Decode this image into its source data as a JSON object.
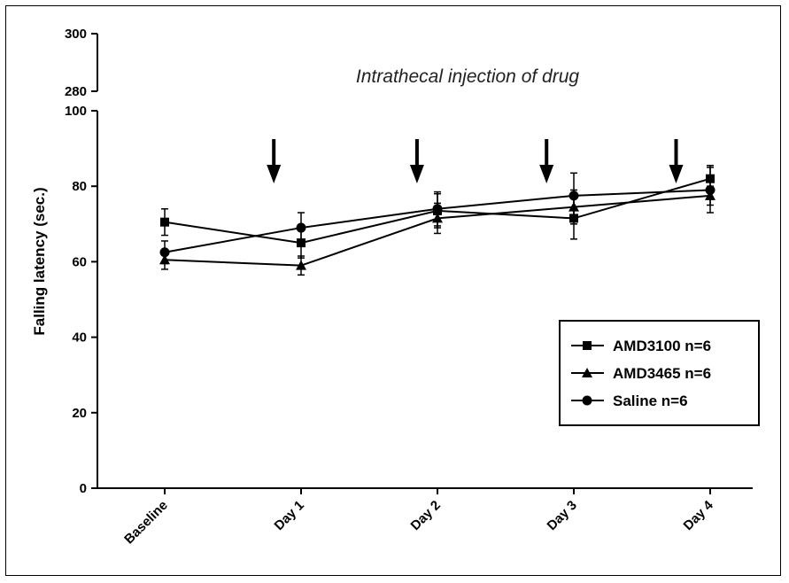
{
  "chart_data": {
    "type": "line",
    "title": "",
    "annotation": "Intrathecal injection of drug",
    "xlabel": "",
    "ylabel": "Falling latency (sec.)",
    "categories": [
      "Baseline",
      "Day 1",
      "Day 2",
      "Day 3",
      "Day 4"
    ],
    "y_ticks_lower": [
      "0",
      "20",
      "40",
      "60",
      "80",
      "100"
    ],
    "y_ticks_upper": [
      "280",
      "300"
    ],
    "ylim_lower": [
      0,
      100
    ],
    "ylim_upper": [
      280,
      300
    ],
    "y_axis_break": true,
    "grid": false,
    "legend_position": "right",
    "injection_arrows_at": [
      0.8,
      1.85,
      2.8,
      3.75
    ],
    "series": [
      {
        "name": "AMD3100 n=6",
        "marker": "square",
        "values": [
          70.5,
          65.0,
          73.5,
          71.5,
          82.0
        ],
        "errors": [
          3.5,
          4.0,
          4.5,
          5.5,
          3.5
        ]
      },
      {
        "name": "AMD3465 n=6",
        "marker": "triangle",
        "values": [
          60.5,
          59.0,
          71.5,
          74.5,
          77.5
        ],
        "errors": [
          2.5,
          2.5,
          4.0,
          4.5,
          2.5
        ]
      },
      {
        "name": "Saline n=6",
        "marker": "circle",
        "values": [
          62.5,
          69.0,
          74.0,
          77.5,
          79.0
        ],
        "errors": [
          3.0,
          4.0,
          4.5,
          6.0,
          6.0
        ]
      }
    ]
  }
}
